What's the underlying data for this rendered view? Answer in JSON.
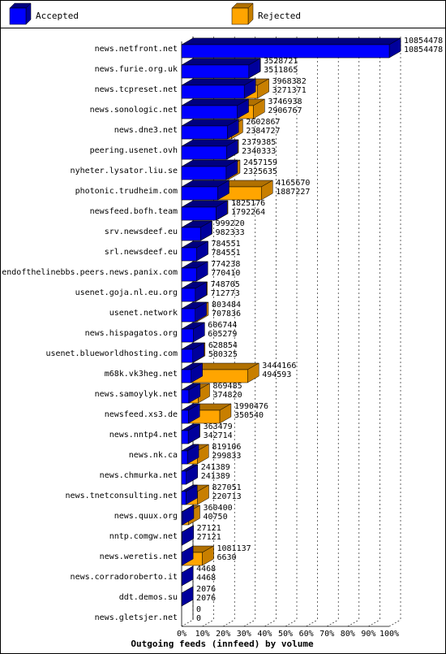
{
  "chart_data": {
    "type": "bar",
    "orientation": "horizontal",
    "stacked": true,
    "style": "3d",
    "title": "",
    "xlabel": "Outgoing feeds (innfeed) by volume",
    "ylabel": "",
    "xlim": [
      0,
      100
    ],
    "x_ticks": [
      "0%",
      "10%",
      "20%",
      "30%",
      "40%",
      "50%",
      "60%",
      "70%",
      "80%",
      "90%",
      "100%"
    ],
    "grid": "vertical dashed",
    "legend_position": "top",
    "colors": {
      "accepted": "#0000ff",
      "rejected": "#ffa500"
    },
    "legend": [
      "Accepted",
      "Rejected"
    ],
    "categories": [
      "news.netfront.net",
      "news.furie.org.uk",
      "news.tcpreset.net",
      "news.sonologic.net",
      "news.dne3.net",
      "peering.usenet.ovh",
      "nyheter.lysator.liu.se",
      "photonic.trudheim.com",
      "newsfeed.bofh.team",
      "srv.newsdeef.eu",
      "srl.newsdeef.eu",
      "endofthelinebbs.peers.news.panix.com",
      "usenet.goja.nl.eu.org",
      "usenet.network",
      "news.hispagatos.org",
      "usenet.blueworldhosting.com",
      "m68k.vk3heg.net",
      "news.samoylyk.net",
      "newsfeed.xs3.de",
      "news.nntp4.net",
      "news.nk.ca",
      "news.chmurka.net",
      "news.tnetconsulting.net",
      "news.quux.org",
      "nntp.comgw.net",
      "news.weretis.net",
      "news.corradoroberto.it",
      "ddt.demos.su",
      "news.gletsjer.net"
    ],
    "offered": [
      10854478,
      3528721,
      3968382,
      3746938,
      2602867,
      2379385,
      2457159,
      4165670,
      1825176,
      999220,
      784551,
      774238,
      748705,
      803484,
      606744,
      628854,
      3444166,
      869485,
      1990476,
      363479,
      819106,
      241389,
      827051,
      360400,
      27121,
      1081137,
      4468,
      2076,
      0
    ],
    "accepted": [
      10854478,
      3511865,
      3271371,
      2906767,
      2384727,
      2340333,
      2325635,
      1887227,
      1792264,
      982333,
      784551,
      770410,
      712773,
      707836,
      605279,
      580325,
      494593,
      374820,
      350540,
      342714,
      299833,
      241389,
      220713,
      40750,
      27121,
      6630,
      4468,
      2076,
      0
    ]
  }
}
